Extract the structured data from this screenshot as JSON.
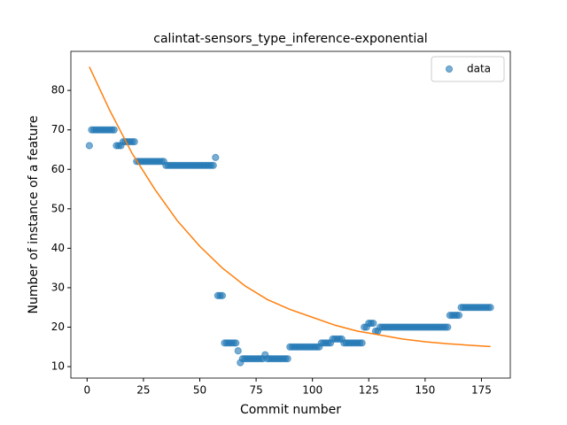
{
  "chart_data": {
    "type": "scatter",
    "title": "calintat-sensors_type_inference-exponential",
    "x_label": "Commit number",
    "y_label": "Number of instance of a feature",
    "xlim": [
      -7.2,
      187.8
    ],
    "ylim": [
      7.1,
      89.9
    ],
    "xticks": [
      0,
      25,
      50,
      75,
      100,
      125,
      150,
      175
    ],
    "yticks": [
      10,
      20,
      30,
      40,
      50,
      60,
      70,
      80
    ],
    "legend": "upper right",
    "series": [
      {
        "name": "data",
        "color": "#1f77b4",
        "kind": "scatter",
        "x": [
          1,
          2,
          3,
          4,
          5,
          6,
          7,
          8,
          9,
          10,
          11,
          12,
          13,
          14,
          15,
          16,
          17,
          18,
          19,
          20,
          21,
          22,
          23,
          24,
          25,
          26,
          27,
          28,
          29,
          30,
          31,
          32,
          33,
          34,
          35,
          36,
          37,
          38,
          39,
          40,
          41,
          42,
          43,
          44,
          45,
          46,
          47,
          48,
          49,
          50,
          51,
          52,
          53,
          54,
          55,
          56,
          57,
          58,
          59,
          60,
          61,
          62,
          63,
          64,
          65,
          66,
          67,
          68,
          69,
          70,
          71,
          72,
          73,
          74,
          75,
          76,
          77,
          78,
          79,
          80,
          81,
          82,
          83,
          84,
          85,
          86,
          87,
          88,
          89,
          90,
          91,
          92,
          93,
          94,
          95,
          96,
          97,
          98,
          99,
          100,
          101,
          102,
          103,
          104,
          105,
          106,
          107,
          108,
          109,
          110,
          111,
          112,
          113,
          114,
          115,
          116,
          117,
          118,
          119,
          120,
          121,
          122,
          123,
          124,
          125,
          126,
          127,
          128,
          129,
          130,
          131,
          132,
          133,
          134,
          135,
          136,
          137,
          138,
          139,
          140,
          141,
          142,
          143,
          144,
          145,
          146,
          147,
          148,
          149,
          150,
          151,
          152,
          153,
          154,
          155,
          156,
          157,
          158,
          159,
          160,
          161,
          162,
          163,
          164,
          165,
          166,
          167,
          168,
          169,
          170,
          171,
          172,
          173,
          174,
          175,
          176,
          177,
          178,
          179
        ],
        "values": [
          66,
          70,
          70,
          70,
          70,
          70,
          70,
          70,
          70,
          70,
          70,
          70,
          66,
          66,
          66,
          67,
          67,
          67,
          67,
          67,
          67,
          62,
          62,
          62,
          62,
          62,
          62,
          62,
          62,
          62,
          62,
          62,
          62,
          62,
          61,
          61,
          61,
          61,
          61,
          61,
          61,
          61,
          61,
          61,
          61,
          61,
          61,
          61,
          61,
          61,
          61,
          61,
          61,
          61,
          61,
          61,
          63,
          28,
          28,
          28,
          16,
          16,
          16,
          16,
          16,
          16,
          14,
          11,
          12,
          12,
          12,
          12,
          12,
          12,
          12,
          12,
          12,
          12,
          13,
          12,
          12,
          12,
          12,
          12,
          12,
          12,
          12,
          12,
          12,
          15,
          15,
          15,
          15,
          15,
          15,
          15,
          15,
          15,
          15,
          15,
          15,
          15,
          15,
          16,
          16,
          16,
          16,
          16,
          17,
          17,
          17,
          17,
          17,
          16,
          16,
          16,
          16,
          16,
          16,
          16,
          16,
          16,
          20,
          20,
          21,
          21,
          21,
          19,
          19,
          20,
          20,
          20,
          20,
          20,
          20,
          20,
          20,
          20,
          20,
          20,
          20,
          20,
          20,
          20,
          20,
          20,
          20,
          20,
          20,
          20,
          20,
          20,
          20,
          20,
          20,
          20,
          20,
          20,
          20,
          20,
          23,
          23,
          23,
          23,
          23,
          25,
          25,
          25,
          25,
          25,
          25,
          25,
          25,
          25,
          25,
          25,
          25,
          25,
          25
        ]
      },
      {
        "color": "#ff7f0e",
        "kind": "line",
        "x": [
          1,
          10,
          20,
          30,
          40,
          50,
          60,
          70,
          80,
          90,
          100,
          110,
          120,
          130,
          140,
          150,
          160,
          170,
          179
        ],
        "values": [
          86,
          75,
          64,
          55,
          47,
          40.5,
          35,
          30.5,
          27,
          24.5,
          22.5,
          20.5,
          19,
          18,
          17,
          16.3,
          15.8,
          15.4,
          15.1
        ]
      }
    ]
  }
}
